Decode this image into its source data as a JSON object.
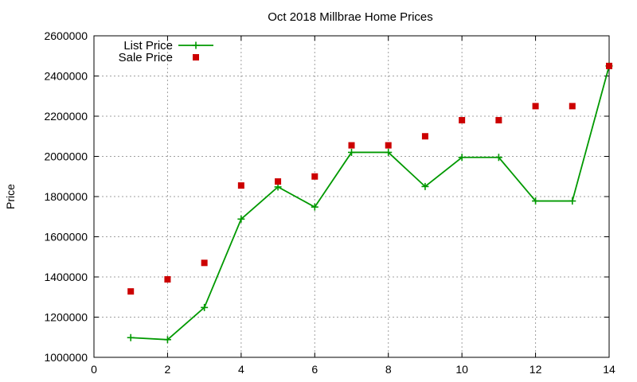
{
  "chart_data": {
    "type": "line",
    "title": "Oct 2018 Millbrae Home Prices",
    "xlabel": "",
    "ylabel": "Price",
    "xlim": [
      0,
      14
    ],
    "ylim": [
      1000000,
      2600000
    ],
    "xticks": [
      0,
      2,
      4,
      6,
      8,
      10,
      12,
      14
    ],
    "yticks": [
      1000000,
      1200000,
      1400000,
      1600000,
      1800000,
      2000000,
      2200000,
      2400000,
      2600000
    ],
    "grid": true,
    "legend_position": "top-left",
    "series": [
      {
        "name": "List Price",
        "style": "linespoints",
        "marker": "plus",
        "color": "#009900",
        "x": [
          1,
          2,
          3,
          4,
          5,
          6,
          7,
          8,
          9,
          10,
          11,
          12,
          13,
          14
        ],
        "y": [
          1098000,
          1088000,
          1248000,
          1688000,
          1848000,
          1748000,
          2020000,
          2020000,
          1850000,
          1995000,
          1995000,
          1778000,
          1778000,
          2450000
        ]
      },
      {
        "name": "Sale Price",
        "style": "points",
        "marker": "square",
        "color": "#cc0000",
        "x": [
          1,
          2,
          3,
          4,
          5,
          6,
          7,
          8,
          9,
          10,
          11,
          12,
          13,
          14
        ],
        "y": [
          1328000,
          1388000,
          1470000,
          1855000,
          1875000,
          1900000,
          2055000,
          2055000,
          2100000,
          2180000,
          2180000,
          2250000,
          2250000,
          2450000
        ]
      }
    ]
  }
}
